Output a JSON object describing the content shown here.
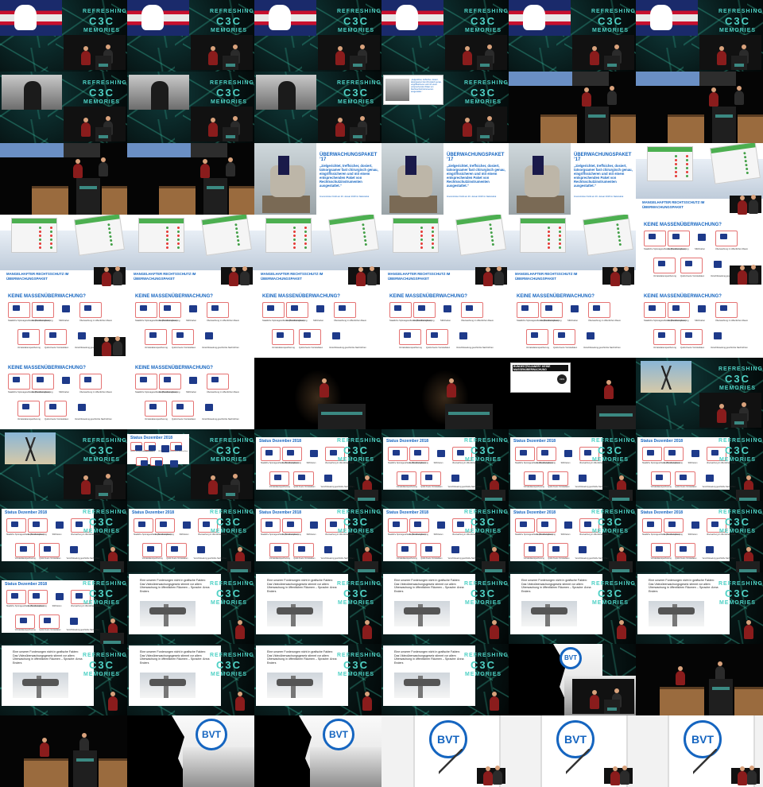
{
  "logo": {
    "line1": "REFRESHING",
    "line2": "C3C",
    "line3": "MEMORIES"
  },
  "slides": {
    "ueberwachungspaket_title": "ÜBERWACHUNGSPAKET ’17",
    "ueberwachungspaket_quote": "„zielgerichtet, treffsicher, dosiert, tatsorgsamer fast chirurgisch genau, eingriffssicheren und mit einem entsprechenden Paket von Rechtsschutzinstrumenten ausgestattet.“",
    "ueberwachungspaket_src": "Innenminister Kickl am 29. Januar 2018 im Nationalrat",
    "mangelhafter_caption_l1": "MANGELHAFTER RECHTSSCHUTZ IM",
    "mangelhafter_caption_l2": "ÜBERWACHUNGSPAKET",
    "keine_title": "KEINE MASSENÜBERWACHUNG?",
    "status_title": "Status Dezember 2018",
    "icons": [
      "Staatliche Spionagesoftware (Bundestrojaner)",
      "Kennzeichenerfassung",
      "SIM-Karten",
      "Überwachung im öffentlichen Raum",
      "Vorratsdatenspeicherung",
      "Quick-freeze Vorratsdaten",
      "Verschlüsselung geschützte Nachrichten"
    ],
    "news_headline": "BUNDESTROJANER? KEINE MASSENÜBERWACHUNG",
    "news_badge": "VDS",
    "camera_text": "Eine unserer Forderungen nicht in grafische Fakten: Das Videoüberwachungsgesetz stimmt vor allem Überwachung in öffentlichen Räumen – Sprache: Anna Enders",
    "bvt": "BVT"
  },
  "colors": {
    "accent": "#1565c0",
    "teal": "#4fd1c5",
    "red": "#e53935",
    "green": "#43a047"
  }
}
